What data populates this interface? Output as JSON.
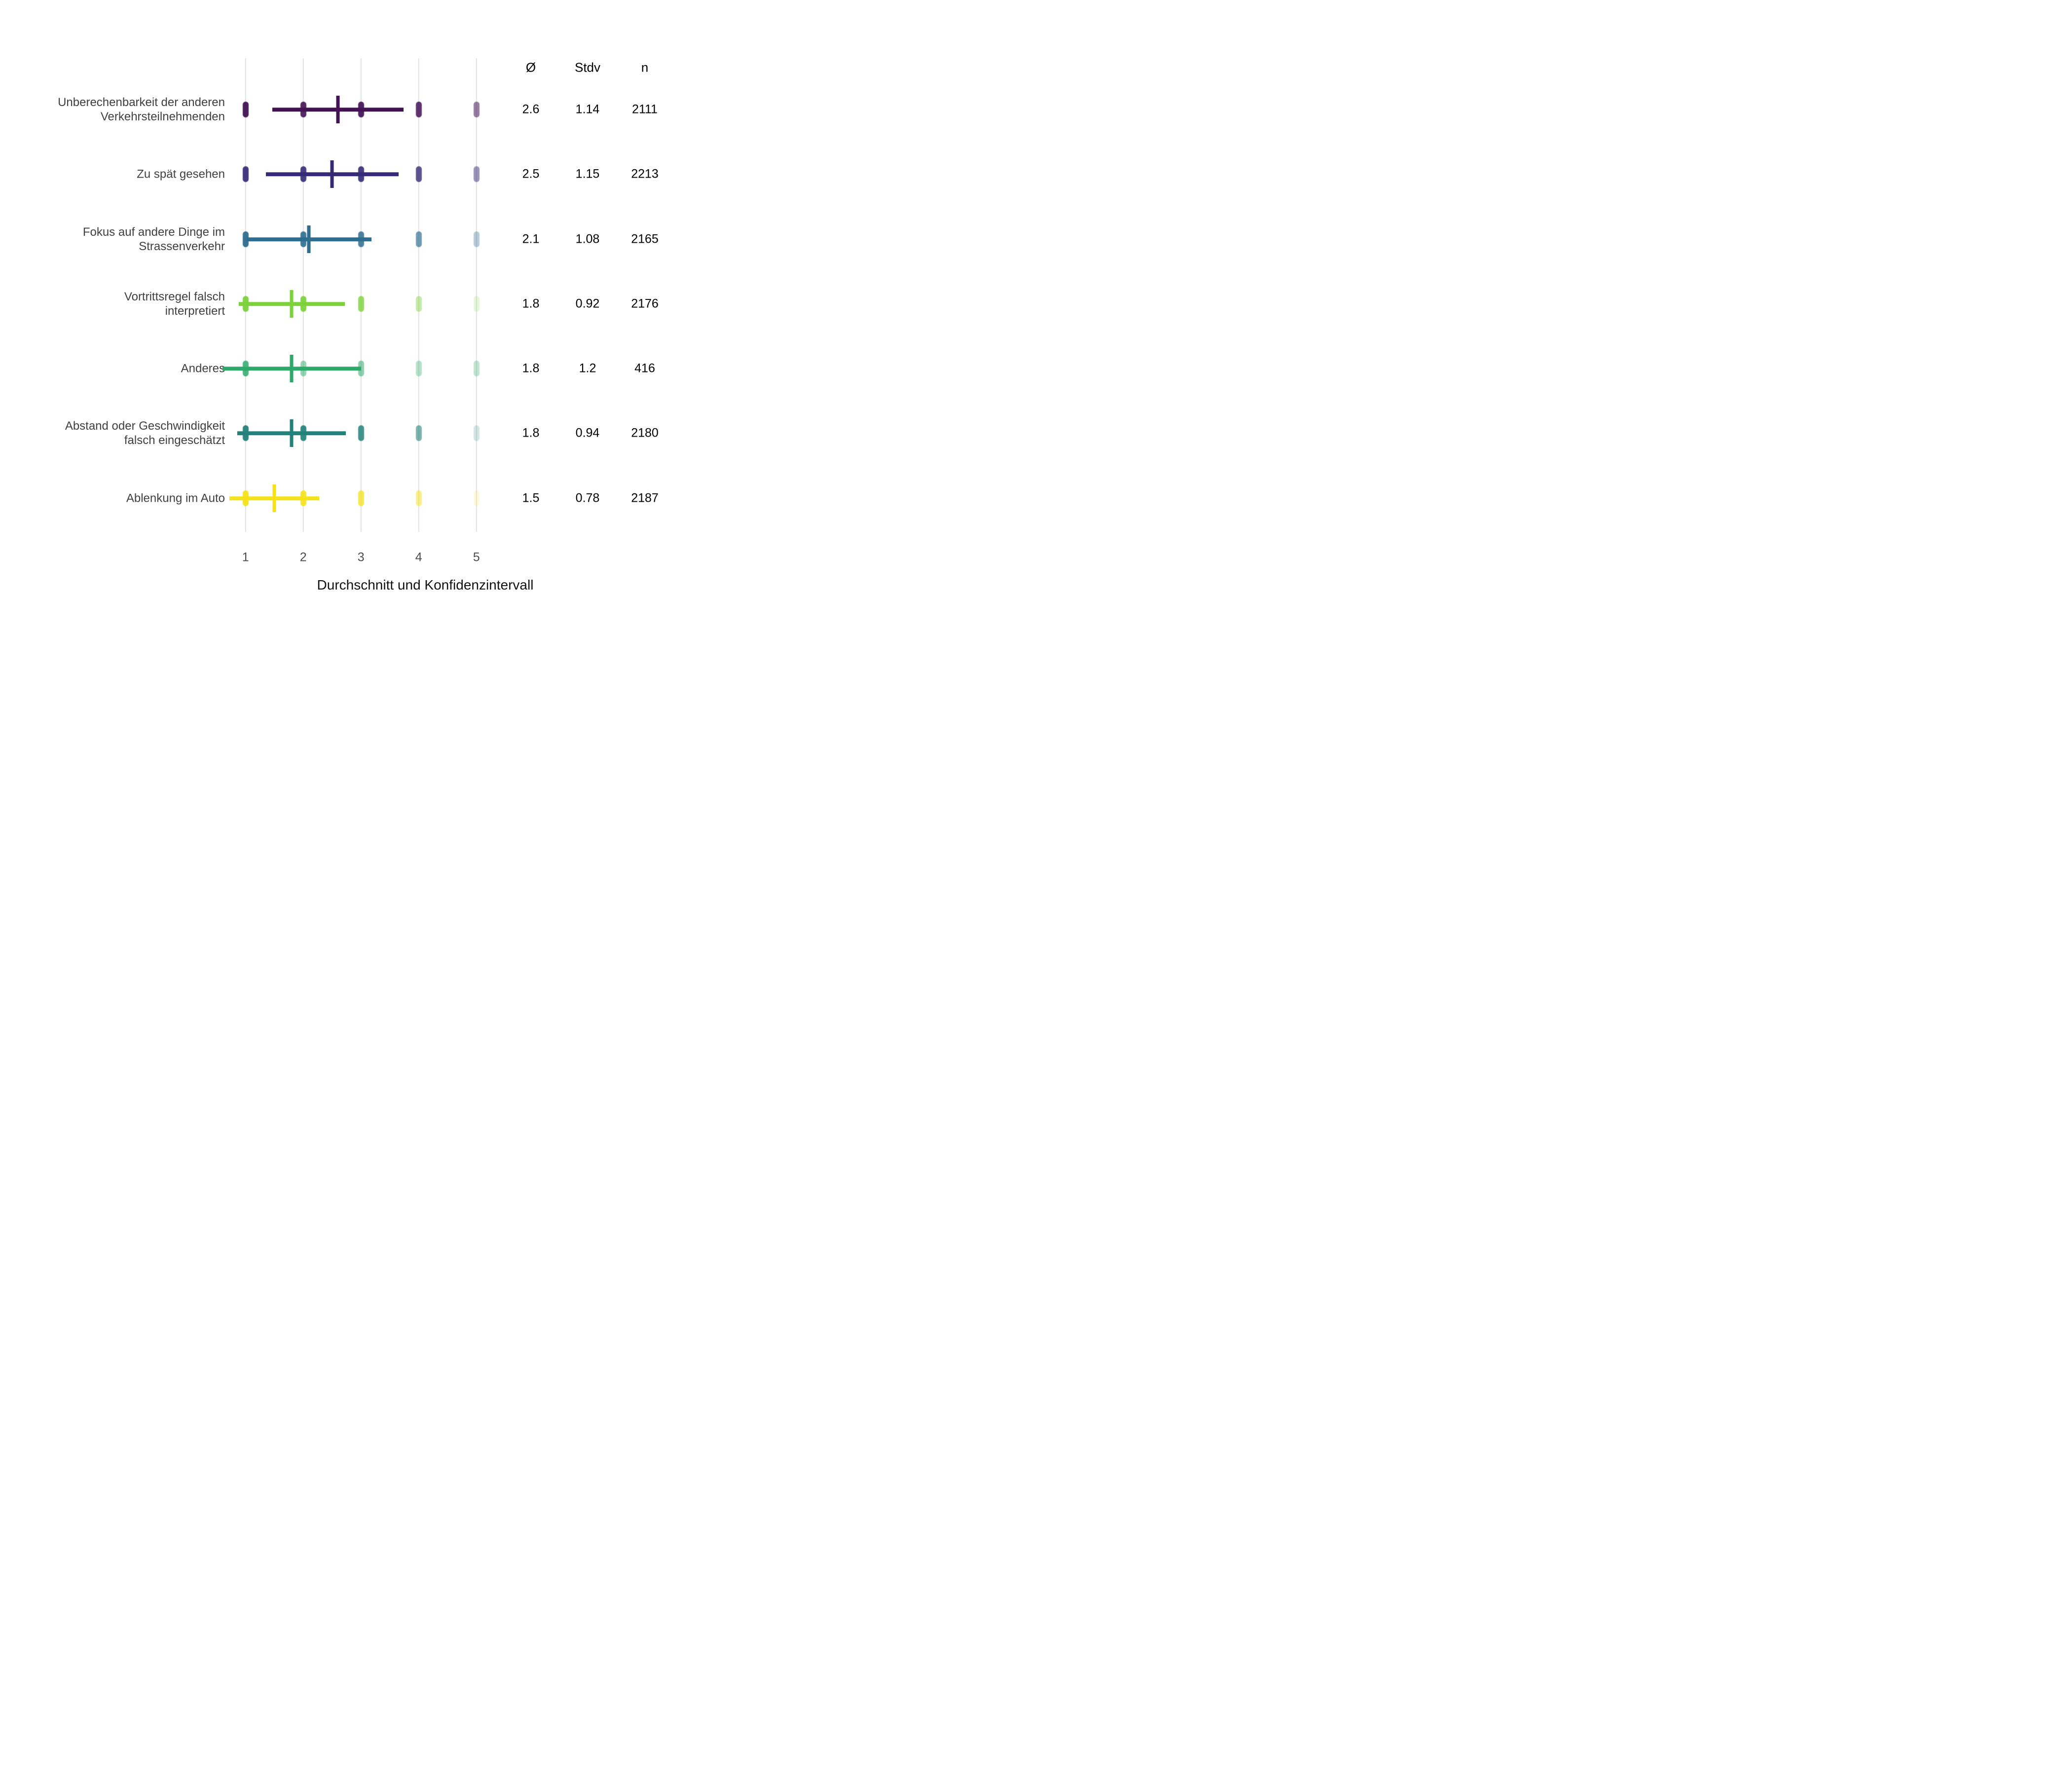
{
  "chart_data": {
    "type": "scatter",
    "variant": "jittered-points-with-mean-and-std-interval",
    "title": "",
    "xlabel": "Durchschnitt und Konfidenzintervall",
    "ylabel": "",
    "x_ticks": [
      1,
      2,
      3,
      4,
      5
    ],
    "xlim": [
      0.55,
      5.45
    ],
    "grid": "vertical-gridlines-only",
    "legend_position": "none",
    "gridline_color": "#e2e2e2",
    "tick_label_color": "#4d4d4d",
    "row_label_color": "#404040",
    "value_text_color": "#000000",
    "columns": [
      "Ø",
      "Stdv",
      "n"
    ],
    "rows": [
      {
        "label": "Unberechenbarkeit der anderen Verkehrsteilnehmenden",
        "label_lines": [
          "Unberechenbarkeit der anderen",
          "Verkehrsteilnehmenden"
        ],
        "mean": 2.6,
        "std": 1.14,
        "n": 2111,
        "mean_text": "2.6",
        "std_text": "1.14",
        "n_text": "2111",
        "interval": [
          1.46,
          3.74
        ],
        "color": "#421254",
        "point_values": [
          1,
          2,
          3,
          4,
          5
        ],
        "point_opacities": [
          0.95,
          0.9,
          0.92,
          0.85,
          0.55
        ]
      },
      {
        "label": "Zu spät gesehen",
        "label_lines": [
          "Zu spät gesehen"
        ],
        "mean": 2.5,
        "std": 1.15,
        "n": 2213,
        "mean_text": "2.5",
        "std_text": "1.15",
        "n_text": "2213",
        "interval": [
          1.35,
          3.65
        ],
        "color": "#352a75",
        "point_values": [
          1,
          2,
          3,
          4,
          5
        ],
        "point_opacities": [
          0.92,
          0.9,
          0.9,
          0.8,
          0.5
        ]
      },
      {
        "label": "Fokus auf andere Dinge im Strassenverkehr",
        "label_lines": [
          "Fokus auf andere Dinge im",
          "Strassenverkehr"
        ],
        "mean": 2.1,
        "std": 1.08,
        "n": 2165,
        "mean_text": "2.1",
        "std_text": "1.08",
        "n_text": "2165",
        "interval": [
          1.02,
          3.18
        ],
        "color": "#2e6d8e",
        "point_values": [
          1,
          2,
          3,
          4,
          5
        ],
        "point_opacities": [
          0.95,
          0.9,
          0.85,
          0.68,
          0.35
        ]
      },
      {
        "label": "Vortrittsregel falsch interpretiert",
        "label_lines": [
          "Vortrittsregel falsch",
          "interpretiert"
        ],
        "mean": 1.8,
        "std": 0.92,
        "n": 2176,
        "mean_text": "1.8",
        "std_text": "0.92",
        "n_text": "2176",
        "interval": [
          0.88,
          2.72
        ],
        "color": "#7cd13c",
        "point_values": [
          1,
          2,
          3,
          4,
          5
        ],
        "point_opacities": [
          0.95,
          0.92,
          0.8,
          0.45,
          0.18
        ]
      },
      {
        "label": "Anderes",
        "label_lines": [
          "Anderes"
        ],
        "mean": 1.8,
        "std": 1.2,
        "n": 416,
        "mean_text": "1.8",
        "std_text": "1.2",
        "n_text": "416",
        "interval": [
          0.6,
          3.0
        ],
        "color": "#2fa96a",
        "point_values": [
          1,
          2,
          3,
          4,
          5
        ],
        "point_opacities": [
          0.85,
          0.5,
          0.55,
          0.35,
          0.3
        ]
      },
      {
        "label": "Abstand oder Geschwindigkeit falsch eingeschätzt",
        "label_lines": [
          "Abstand oder Geschwindigkeit",
          "falsch eingeschätzt"
        ],
        "mean": 1.8,
        "std": 0.94,
        "n": 2180,
        "mean_text": "1.8",
        "std_text": "0.94",
        "n_text": "2180",
        "interval": [
          0.86,
          2.74
        ],
        "color": "#23817b",
        "point_values": [
          1,
          2,
          3,
          4,
          5
        ],
        "point_opacities": [
          0.95,
          0.92,
          0.85,
          0.6,
          0.2
        ]
      },
      {
        "label": "Ablenkung im Auto",
        "label_lines": [
          "Ablenkung im Auto"
        ],
        "mean": 1.5,
        "std": 0.78,
        "n": 2187,
        "mean_text": "1.5",
        "std_text": "0.78",
        "n_text": "2187",
        "interval": [
          0.72,
          2.28
        ],
        "color": "#f5e21a",
        "point_values": [
          1,
          2,
          3,
          4,
          5
        ],
        "point_opacities": [
          0.95,
          0.9,
          0.75,
          0.5,
          0.15
        ]
      }
    ]
  }
}
